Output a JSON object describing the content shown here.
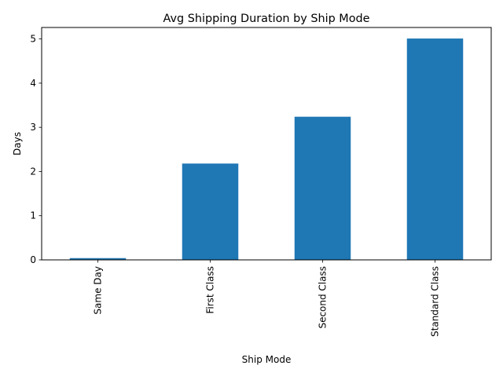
{
  "chart_data": {
    "type": "bar",
    "title": "Avg Shipping Duration by Ship Mode",
    "xlabel": "Ship Mode",
    "ylabel": "Days",
    "categories": [
      "Same Day",
      "First Class",
      "Second Class",
      "Standard Class"
    ],
    "values": [
      0.04,
      2.18,
      3.24,
      5.01
    ],
    "ylim": [
      0,
      5.26
    ],
    "yticks": [
      0,
      1,
      2,
      3,
      4,
      5
    ],
    "bar_color": "#1f77b4",
    "grid": false,
    "legend": false,
    "x_tick_rotation": "vertical"
  }
}
